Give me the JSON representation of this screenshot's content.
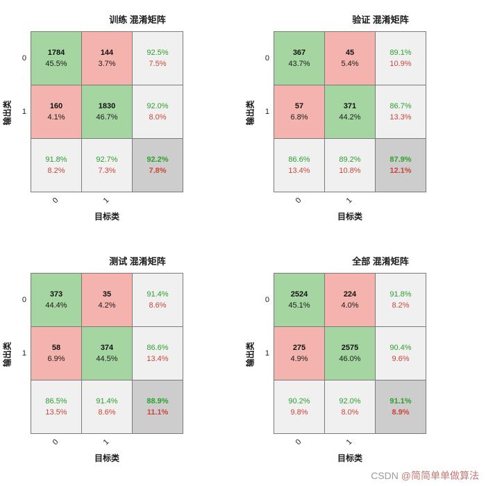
{
  "watermark": {
    "prefix": "CSDN ",
    "handle": "@简简单单做算法"
  },
  "colors": {
    "correct_bg": "#a5d6a2",
    "incorrect_bg": "#f4b4ad",
    "summary_bg": "#f0f0f0",
    "total_bg": "#cdcdcd",
    "grid_line": "#7a7a7a",
    "good_text": "#2ba12b",
    "bad_text": "#cc4539"
  },
  "chart_data": [
    {
      "type": "heatmap",
      "subtype": "confusion-matrix",
      "title": "训练 混淆矩阵",
      "xlabel": "目标类",
      "ylabel": "输出类",
      "classes": [
        "0",
        "1"
      ],
      "cells": [
        [
          {
            "count": "1784",
            "percent": "45.5%"
          },
          {
            "count": "144",
            "percent": "3.7%"
          }
        ],
        [
          {
            "count": "160",
            "percent": "4.1%"
          },
          {
            "count": "1830",
            "percent": "46.7%"
          }
        ]
      ],
      "row_summary": [
        {
          "correct": "92.5%",
          "incorrect": "7.5%"
        },
        {
          "correct": "92.0%",
          "incorrect": "8.0%"
        }
      ],
      "col_summary": [
        {
          "correct": "91.8%",
          "incorrect": "8.2%"
        },
        {
          "correct": "92.7%",
          "incorrect": "7.3%"
        }
      ],
      "total": {
        "correct": "92.2%",
        "incorrect": "7.8%"
      }
    },
    {
      "type": "heatmap",
      "subtype": "confusion-matrix",
      "title": "验证 混淆矩阵",
      "xlabel": "目标类",
      "ylabel": "输出类",
      "classes": [
        "0",
        "1"
      ],
      "cells": [
        [
          {
            "count": "367",
            "percent": "43.7%"
          },
          {
            "count": "45",
            "percent": "5.4%"
          }
        ],
        [
          {
            "count": "57",
            "percent": "6.8%"
          },
          {
            "count": "371",
            "percent": "44.2%"
          }
        ]
      ],
      "row_summary": [
        {
          "correct": "89.1%",
          "incorrect": "10.9%"
        },
        {
          "correct": "86.7%",
          "incorrect": "13.3%"
        }
      ],
      "col_summary": [
        {
          "correct": "86.6%",
          "incorrect": "13.4%"
        },
        {
          "correct": "89.2%",
          "incorrect": "10.8%"
        }
      ],
      "total": {
        "correct": "87.9%",
        "incorrect": "12.1%"
      }
    },
    {
      "type": "heatmap",
      "subtype": "confusion-matrix",
      "title": "测试 混淆矩阵",
      "xlabel": "目标类",
      "ylabel": "输出类",
      "classes": [
        "0",
        "1"
      ],
      "cells": [
        [
          {
            "count": "373",
            "percent": "44.4%"
          },
          {
            "count": "35",
            "percent": "4.2%"
          }
        ],
        [
          {
            "count": "58",
            "percent": "6.9%"
          },
          {
            "count": "374",
            "percent": "44.5%"
          }
        ]
      ],
      "row_summary": [
        {
          "correct": "91.4%",
          "incorrect": "8.6%"
        },
        {
          "correct": "86.6%",
          "incorrect": "13.4%"
        }
      ],
      "col_summary": [
        {
          "correct": "86.5%",
          "incorrect": "13.5%"
        },
        {
          "correct": "91.4%",
          "incorrect": "8.6%"
        }
      ],
      "total": {
        "correct": "88.9%",
        "incorrect": "11.1%"
      }
    },
    {
      "type": "heatmap",
      "subtype": "confusion-matrix",
      "title": "全部 混淆矩阵",
      "xlabel": "目标类",
      "ylabel": "输出类",
      "classes": [
        "0",
        "1"
      ],
      "cells": [
        [
          {
            "count": "2524",
            "percent": "45.1%"
          },
          {
            "count": "224",
            "percent": "4.0%"
          }
        ],
        [
          {
            "count": "275",
            "percent": "4.9%"
          },
          {
            "count": "2575",
            "percent": "46.0%"
          }
        ]
      ],
      "row_summary": [
        {
          "correct": "91.8%",
          "incorrect": "8.2%"
        },
        {
          "correct": "90.4%",
          "incorrect": "9.6%"
        }
      ],
      "col_summary": [
        {
          "correct": "90.2%",
          "incorrect": "9.8%"
        },
        {
          "correct": "92.0%",
          "incorrect": "8.0%"
        }
      ],
      "total": {
        "correct": "91.1%",
        "incorrect": "8.9%"
      }
    }
  ]
}
